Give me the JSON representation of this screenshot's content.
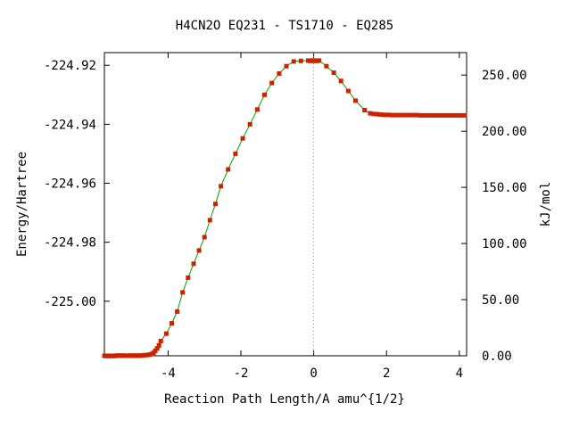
{
  "chart_data": {
    "type": "line",
    "title": "H4CN2O   EQ231 - TS1710 - EQ285",
    "xlabel": "Reaction Path Length/A amu^{1/2}",
    "ylabel": "Energy/Hartree",
    "y2label": "kJ/mol",
    "xlim": [
      -5.75,
      4.2
    ],
    "ylim": [
      -225.0185,
      -224.9157
    ],
    "y2lim": [
      0.0,
      270.0
    ],
    "x_ticks": [
      -4,
      -2,
      0,
      2,
      4
    ],
    "x_tick_labels": [
      "-4",
      "-2",
      "0",
      "2",
      "4"
    ],
    "y_ticks": [
      -224.92,
      -224.94,
      -224.96,
      -224.98,
      -225.0
    ],
    "y_tick_labels": [
      "-224.92",
      "-224.94",
      "-224.96",
      "-224.98",
      "-225.00"
    ],
    "y2_ticks": [
      250,
      200,
      150,
      100,
      50,
      0
    ],
    "y2_tick_labels": [
      "250.00",
      "200.00",
      "150.00",
      "100.00",
      "50.00",
      "0.00"
    ],
    "ts_marker_x": 0,
    "grid": false,
    "line_color": "#00a000",
    "marker_color": "#cc2200",
    "series": [
      {
        "x": [
          -5.75,
          -5.7,
          -5.65,
          -5.6,
          -5.55,
          -5.5,
          -5.45,
          -5.4,
          -5.35,
          -5.3,
          -5.25,
          -5.2,
          -5.15,
          -5.1,
          -5.05,
          -5.0,
          -4.95,
          -4.9,
          -4.85,
          -4.8,
          -4.75,
          -4.7,
          -4.65,
          -4.6,
          -4.55,
          -4.5,
          -4.45,
          -4.4,
          -4.35,
          -4.3,
          -4.25,
          -4.2,
          -4.05,
          -3.9,
          -3.75,
          -3.6,
          -3.45,
          -3.3,
          -3.15,
          -3.0,
          -2.85,
          -2.7,
          -2.55,
          -2.35,
          -2.15,
          -1.95,
          -1.75,
          -1.55,
          -1.35,
          -1.15,
          -0.95,
          -0.75,
          -0.55,
          -0.35,
          -0.15,
          -0.1,
          -0.05,
          0.0,
          0.05,
          0.1,
          0.15,
          0.35,
          0.55,
          0.75,
          0.95,
          1.15,
          1.4,
          1.55,
          1.65,
          1.75,
          1.85,
          1.95,
          2.05,
          2.15,
          2.25,
          2.35,
          2.45,
          2.55,
          2.65,
          2.75,
          2.85,
          2.95,
          3.05,
          3.15,
          3.25,
          3.35,
          3.45,
          3.55,
          3.65,
          3.75,
          3.85,
          3.95,
          4.05,
          4.15
        ],
        "y": [
          -225.0185,
          -225.0186,
          -225.0185,
          -225.0186,
          -225.0185,
          -225.0186,
          -225.0185,
          -225.0184,
          -225.0185,
          -225.0184,
          -225.0185,
          -225.0184,
          -225.0185,
          -225.0185,
          -225.0184,
          -225.0185,
          -225.0184,
          -225.0185,
          -225.0184,
          -225.0185,
          -225.0184,
          -225.0184,
          -225.0183,
          -225.0183,
          -225.0182,
          -225.0181,
          -225.0179,
          -225.0175,
          -225.0168,
          -225.016,
          -225.015,
          -225.0135,
          -225.011,
          -225.0075,
          -225.0035,
          -224.997,
          -224.992,
          -224.9873,
          -224.9828,
          -224.9783,
          -224.9725,
          -224.967,
          -224.961,
          -224.9553,
          -224.95,
          -224.9448,
          -224.94,
          -224.935,
          -224.93,
          -224.926,
          -224.9228,
          -224.9203,
          -224.9187,
          -224.9185,
          -224.9184,
          -224.9185,
          -224.9184,
          -224.9185,
          -224.9184,
          -224.9185,
          -224.9184,
          -224.9203,
          -224.9225,
          -224.9253,
          -224.9287,
          -224.932,
          -224.9352,
          -224.9363,
          -224.9365,
          -224.9366,
          -224.9367,
          -224.9368,
          -224.9368,
          -224.9369,
          -224.9369,
          -224.9369,
          -224.9369,
          -224.9369,
          -224.9369,
          -224.9369,
          -224.9369,
          -224.937,
          -224.937,
          -224.937,
          -224.937,
          -224.937,
          -224.937,
          -224.937,
          -224.937,
          -224.937,
          -224.937,
          -224.937,
          -224.937,
          -224.937
        ]
      }
    ]
  }
}
